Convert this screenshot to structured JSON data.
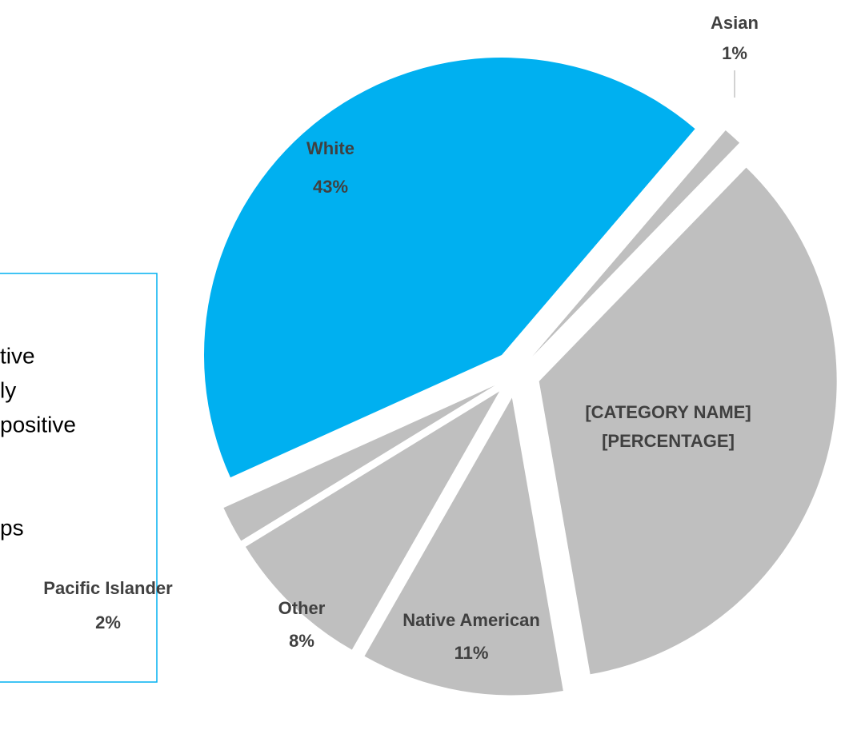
{
  "chart_data": {
    "type": "pie",
    "categories": [
      "Asian",
      "[CATEGORY NAME]",
      "Native American",
      "Other",
      "Pacific Islander",
      "White"
    ],
    "values": [
      1,
      35,
      11,
      8,
      2,
      43
    ],
    "value_labels": [
      "1%",
      "[PERCENTAGE]",
      "11%",
      "8%",
      "2%",
      "43%"
    ],
    "colors": [
      "#bfbfbf",
      "#bfbfbf",
      "#bfbfbf",
      "#bfbfbf",
      "#bfbfbf",
      "#00b0f0"
    ]
  },
  "text_box": {
    "lines": [
      "tive",
      "ly",
      "positive",
      "ps"
    ]
  }
}
